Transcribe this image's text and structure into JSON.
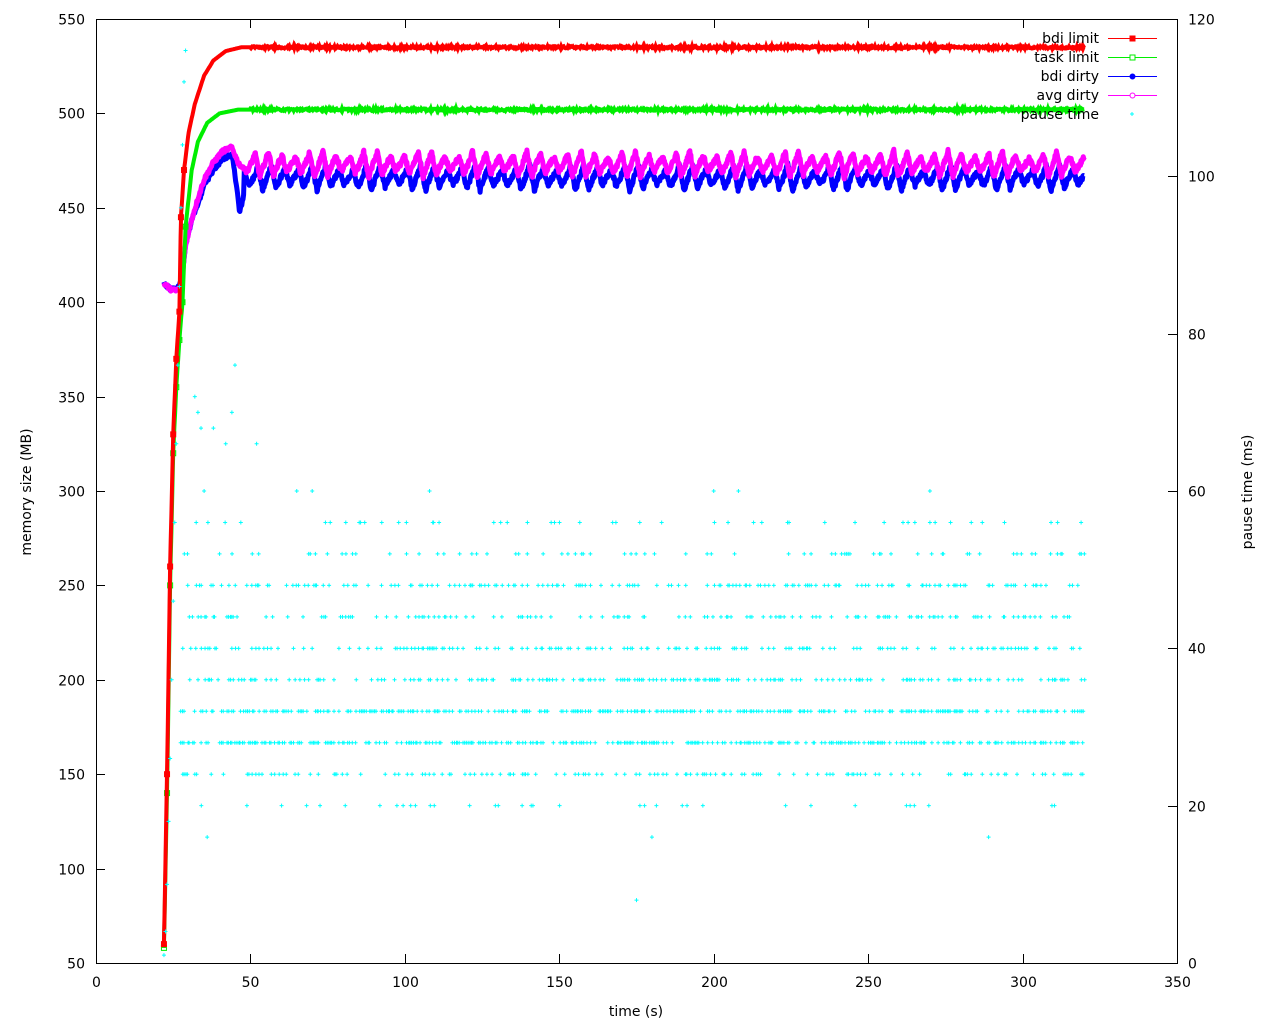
{
  "chart_data": {
    "type": "line",
    "xlabel": "time (s)",
    "ylabel": "memory size (MB)",
    "y2label": "pause time (ms)",
    "xlim": [
      0,
      350
    ],
    "ylim": [
      50,
      550
    ],
    "y2lim": [
      0,
      120
    ],
    "xticks": [
      0,
      50,
      100,
      150,
      200,
      250,
      300,
      350
    ],
    "yticks": [
      50,
      100,
      150,
      200,
      250,
      300,
      350,
      400,
      450,
      500,
      550
    ],
    "y2ticks": [
      0,
      20,
      40,
      60,
      80,
      100,
      120
    ],
    "grid": false,
    "legend_position": "top-right",
    "series": [
      {
        "name": "bdi limit",
        "axis": "left",
        "color": "#ff0000",
        "marker": "square-filled",
        "ramp": [
          [
            22,
            60
          ],
          [
            23,
            150
          ],
          [
            24,
            260
          ],
          [
            25,
            330
          ],
          [
            26,
            370
          ],
          [
            27,
            395
          ],
          [
            27.5,
            445
          ],
          [
            28.5,
            470
          ],
          [
            30,
            490
          ],
          [
            32,
            505
          ],
          [
            35,
            520
          ],
          [
            38,
            528
          ],
          [
            42,
            533
          ],
          [
            47,
            535
          ],
          [
            320,
            535
          ]
        ]
      },
      {
        "name": "task limit",
        "axis": "left",
        "color": "#00ee00",
        "marker": "square-open",
        "ramp": [
          [
            22,
            58
          ],
          [
            23,
            140
          ],
          [
            24,
            250
          ],
          [
            25,
            320
          ],
          [
            26,
            355
          ],
          [
            27,
            380
          ],
          [
            28,
            400
          ],
          [
            29,
            440
          ],
          [
            31,
            470
          ],
          [
            33,
            485
          ],
          [
            36,
            495
          ],
          [
            40,
            500
          ],
          [
            46,
            502
          ],
          [
            320,
            502
          ]
        ]
      },
      {
        "name": "bdi dirty",
        "axis": "left",
        "color": "#0000ff",
        "marker": "circle-filled",
        "ramp": [
          [
            22,
            410
          ],
          [
            24,
            407
          ],
          [
            26,
            407
          ],
          [
            27.5,
            410
          ],
          [
            29,
            430
          ],
          [
            31,
            444
          ],
          [
            33,
            452
          ],
          [
            35,
            462
          ],
          [
            38,
            470
          ],
          [
            41,
            476
          ],
          [
            44,
            478
          ],
          [
            45.5,
            462
          ],
          [
            46.5,
            447
          ],
          [
            48,
            458
          ]
        ],
        "base": 466,
        "amplitude": 7,
        "period": 4.4,
        "start": 48,
        "end": 320
      },
      {
        "name": "avg dirty",
        "axis": "left",
        "color": "#ff00ff",
        "marker": "circle-open",
        "ramp": [
          [
            22,
            410
          ],
          [
            24,
            407
          ],
          [
            26,
            406
          ],
          [
            27.5,
            408
          ],
          [
            29,
            430
          ],
          [
            31,
            444
          ],
          [
            33,
            455
          ],
          [
            35,
            465
          ],
          [
            38,
            474
          ],
          [
            41,
            480
          ],
          [
            44,
            482
          ],
          [
            46,
            474
          ],
          [
            48,
            470
          ]
        ],
        "base": 473,
        "amplitude": 7,
        "period": 4.4,
        "start": 48,
        "end": 320
      },
      {
        "name": "pause time",
        "axis": "right",
        "color": "#00ffff",
        "marker": "plus",
        "start": 27.5,
        "end": 321,
        "levels_ms": [
          20,
          24,
          28,
          32,
          36,
          40,
          44,
          48,
          52,
          56
        ],
        "level_weights": [
          0.05,
          0.25,
          0.5,
          0.5,
          0.32,
          0.3,
          0.28,
          0.25,
          0.13,
          0.08
        ],
        "ramp_points": [
          [
            22,
            1
          ],
          [
            22.5,
            4
          ],
          [
            23,
            10
          ],
          [
            23.5,
            18
          ],
          [
            24,
            26
          ],
          [
            24.5,
            36
          ],
          [
            25,
            46
          ],
          [
            25.5,
            56
          ],
          [
            26,
            66
          ],
          [
            26.5,
            76
          ],
          [
            27,
            86
          ],
          [
            27.5,
            96
          ],
          [
            28,
            104
          ],
          [
            28.5,
            112
          ],
          [
            29,
            116
          ]
        ],
        "outliers": [
          [
            32,
            72
          ],
          [
            33,
            70
          ],
          [
            34,
            68
          ],
          [
            35,
            60
          ],
          [
            38,
            68
          ],
          [
            42,
            66
          ],
          [
            44,
            70
          ],
          [
            45,
            76
          ],
          [
            52,
            66
          ],
          [
            65,
            60
          ],
          [
            70,
            60
          ],
          [
            108,
            60
          ],
          [
            200,
            60
          ],
          [
            208,
            60
          ],
          [
            270,
            60
          ],
          [
            270,
            56
          ],
          [
            175,
            8
          ],
          [
            180,
            16
          ],
          [
            289,
            16
          ],
          [
            36,
            16
          ]
        ]
      }
    ]
  }
}
